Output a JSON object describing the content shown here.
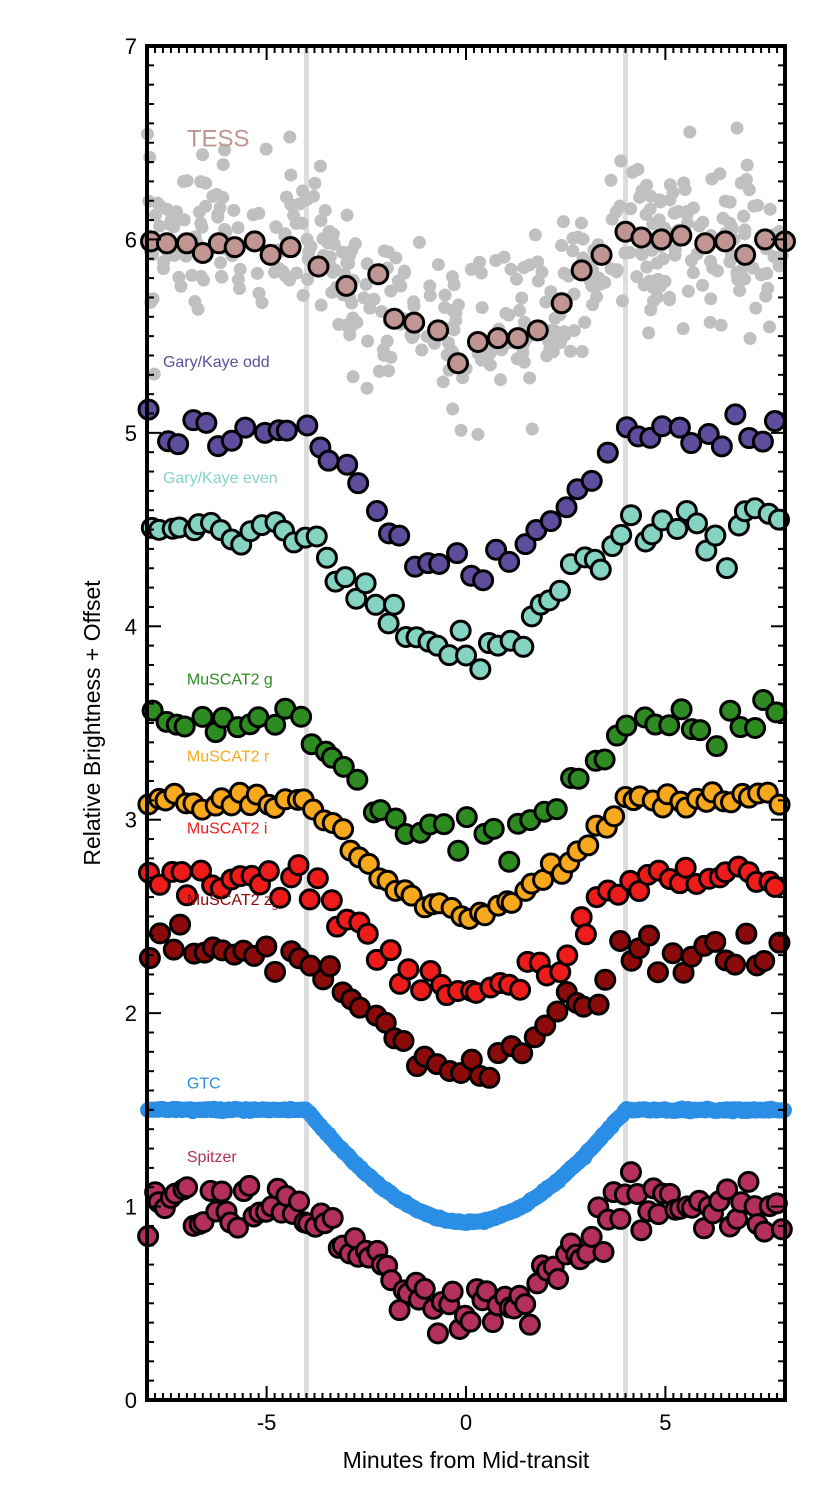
{
  "chart_data": {
    "type": "scatter",
    "xlabel": "Minutes from Mid-transit",
    "ylabel": "Relative Brightness + Offset",
    "xlim": [
      -8,
      8
    ],
    "ylim": [
      0,
      7
    ],
    "x_ticks": [
      -5,
      0,
      5
    ],
    "y_ticks": [
      0,
      1,
      2,
      3,
      4,
      5,
      6,
      7
    ],
    "vertical_lines_x": [
      -4,
      4
    ],
    "vertical_line_color": "#dddddd",
    "grid": false,
    "legend_placement": "inline labels at left",
    "unbinned_color": "#c0c0c0",
    "series": [
      {
        "name": "TESS",
        "label_parts": [
          "TESS"
        ],
        "color": "#c09592",
        "label_x": -7.0,
        "label_y": 6.48,
        "baseline": 6.0,
        "depth": 0.5,
        "noise": 0.04,
        "points_binned": [
          [
            -7.9,
            5.99
          ],
          [
            -7.5,
            5.98
          ],
          [
            -7.0,
            5.98
          ],
          [
            -6.6,
            5.93
          ],
          [
            -6.2,
            5.98
          ],
          [
            -5.8,
            5.96
          ],
          [
            -5.3,
            5.99
          ],
          [
            -4.9,
            5.92
          ],
          [
            -4.4,
            5.96
          ],
          [
            -3.7,
            5.86
          ],
          [
            -3.0,
            5.76
          ],
          [
            -2.2,
            5.82
          ],
          [
            -1.8,
            5.59
          ],
          [
            -1.3,
            5.57
          ],
          [
            -0.7,
            5.53
          ],
          [
            -0.2,
            5.36
          ],
          [
            0.3,
            5.47
          ],
          [
            0.8,
            5.49
          ],
          [
            1.3,
            5.49
          ],
          [
            1.8,
            5.53
          ],
          [
            2.4,
            5.67
          ],
          [
            2.9,
            5.84
          ],
          [
            3.4,
            5.92
          ],
          [
            4.0,
            6.04
          ],
          [
            4.4,
            6.01
          ],
          [
            4.9,
            6.0
          ],
          [
            5.4,
            6.02
          ],
          [
            6.0,
            5.98
          ],
          [
            6.5,
            5.99
          ],
          [
            7.0,
            5.92
          ],
          [
            7.5,
            6.0
          ],
          [
            8.0,
            5.99
          ]
        ]
      },
      {
        "name": "Gary/Kaye odd",
        "label_parts": [
          "Gary/Kaye odd"
        ],
        "color": "#5e4c9c",
        "label_x": -7.6,
        "label_y": 5.34,
        "baseline": 5.0,
        "depth": 0.68,
        "noise": 0.05,
        "n_points": 46
      },
      {
        "name": "Gary/Kaye even",
        "label_parts": [
          "Gary/Kaye even"
        ],
        "color": "#85d3c2",
        "label_x": -7.6,
        "label_y": 4.74,
        "baseline": 4.5,
        "depth": 0.62,
        "noise": 0.07,
        "n_points": 62
      },
      {
        "name": "MuSCAT2 g",
        "label_parts": [
          "MuSCAT2 g"
        ],
        "color": "#2e8b22",
        "label_x": -7.0,
        "label_y": 3.7,
        "baseline": 3.5,
        "depth": 0.64,
        "noise": 0.05,
        "n_points": 52
      },
      {
        "name": "MuSCAT2 r",
        "label_parts": [
          "MuSCAT2 r"
        ],
        "color": "#f8a81c",
        "label_x": -7.0,
        "label_y": 3.3,
        "baseline": 3.1,
        "depth": 0.57,
        "noise": 0.025,
        "n_points": 70
      },
      {
        "name": "MuSCAT2 i",
        "label_parts": [
          "MuSCAT2 i"
        ],
        "color": "#ee1b1b",
        "label_x": -7.0,
        "label_y": 2.93,
        "baseline": 2.7,
        "depth": 0.6,
        "noise": 0.05,
        "n_points": 64
      },
      {
        "name": "MuSCAT2 zs",
        "label_parts": [
          "MuSCAT2 z",
          "s"
        ],
        "color": "#8b0a0a",
        "label_x": -7.0,
        "label_y": 2.56,
        "baseline": 2.3,
        "depth": 0.55,
        "noise": 0.05,
        "n_points": 60
      },
      {
        "name": "GTC",
        "label_parts": [
          "GTC"
        ],
        "color": "#2b8ee6",
        "label_x": -7.0,
        "label_y": 1.61,
        "baseline": 1.5,
        "depth": 0.58,
        "noise": 0.003,
        "n_points": 300
      },
      {
        "name": "Spitzer",
        "label_parts": [
          "Spitzer"
        ],
        "color": "#b3305c",
        "label_x": -7.0,
        "label_y": 1.23,
        "baseline": 1.0,
        "depth": 0.57,
        "noise": 0.08,
        "n_points": 115
      }
    ]
  }
}
